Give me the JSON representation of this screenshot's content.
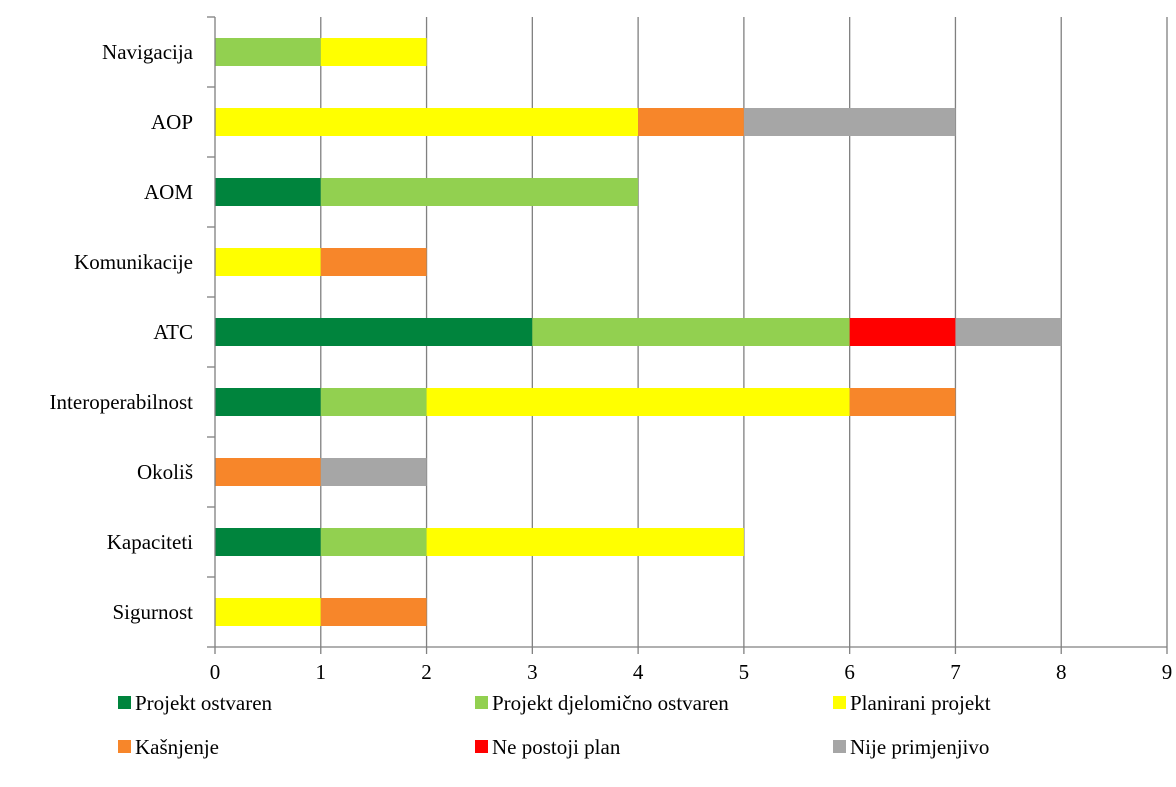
{
  "chart_data": {
    "type": "bar",
    "orientation": "horizontal",
    "stacked": true,
    "title": "",
    "xlabel": "",
    "ylabel": "",
    "xlim": [
      0,
      9
    ],
    "xticks": [
      0,
      1,
      2,
      3,
      4,
      5,
      6,
      7,
      8,
      9
    ],
    "grid": "vertical",
    "legend_position": "bottom",
    "categories": [
      "Navigacija",
      "AOP",
      "AOM",
      "Komunikacije",
      "ATC",
      "Interoperabilnost",
      "Okoliš",
      "Kapaciteti",
      "Sigurnost"
    ],
    "series": [
      {
        "name": "Projekt ostvaren",
        "color": "#00843d",
        "values": [
          0,
          0,
          1,
          0,
          3,
          1,
          0,
          1,
          0
        ]
      },
      {
        "name": "Projekt djelomično ostvaren",
        "color": "#92d050",
        "values": [
          1,
          0,
          3,
          0,
          3,
          1,
          0,
          1,
          0
        ]
      },
      {
        "name": "Planirani projekt",
        "color": "#ffff00",
        "values": [
          1,
          4,
          0,
          1,
          0,
          4,
          0,
          3,
          1
        ]
      },
      {
        "name": "Kašnjenje",
        "color": "#f7862a",
        "values": [
          0,
          1,
          0,
          1,
          0,
          1,
          1,
          0,
          1
        ]
      },
      {
        "name": "Ne postoji plan",
        "color": "#ff0000",
        "values": [
          0,
          0,
          0,
          0,
          1,
          0,
          0,
          0,
          0
        ]
      },
      {
        "name": "Nije primjenjivo",
        "color": "#a6a6a6",
        "values": [
          0,
          2,
          0,
          0,
          1,
          0,
          1,
          0,
          0
        ]
      }
    ]
  }
}
